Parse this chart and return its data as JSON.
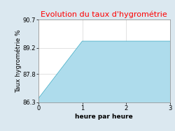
{
  "title": "Evolution du taux d'hygrométrie",
  "title_color": "#ff0000",
  "xlabel": "heure par heure",
  "ylabel": "Taux hygrométrie %",
  "x": [
    0,
    1,
    3
  ],
  "y": [
    86.5,
    89.55,
    89.55
  ],
  "fill_color": "#aedcec",
  "fill_alpha": 1.0,
  "line_color": "#5bb8d0",
  "line_width": 0.8,
  "background_color": "#dbe8f0",
  "plot_background": "#ffffff",
  "ylim": [
    86.3,
    90.7
  ],
  "xlim": [
    0,
    3
  ],
  "yticks": [
    86.3,
    87.8,
    89.2,
    90.7
  ],
  "xticks": [
    0,
    1,
    2,
    3
  ],
  "grid_color": "#cccccc",
  "title_fontsize": 8,
  "axis_label_fontsize": 6.5,
  "tick_fontsize": 6
}
